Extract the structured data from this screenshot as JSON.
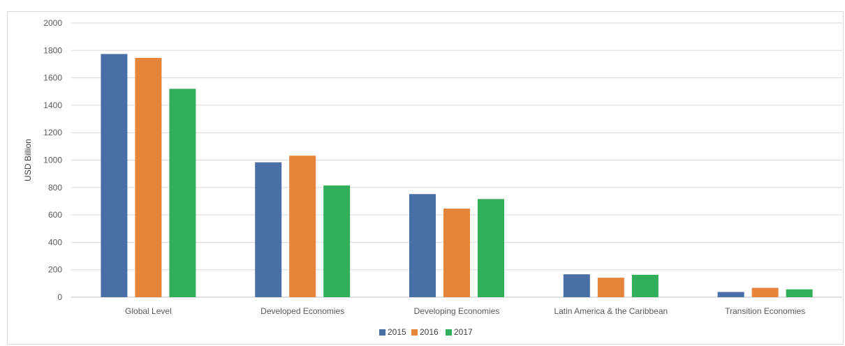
{
  "header": {
    "partial_title": ""
  },
  "chart_data": {
    "type": "bar",
    "title": "",
    "xlabel": "",
    "ylabel": "USD Billion",
    "ylim": [
      0,
      2000
    ],
    "yticks": [
      "0",
      "200",
      "400",
      "600",
      "800",
      "1000",
      "1200",
      "1400",
      "1600",
      "1800",
      "2000"
    ],
    "grid": true,
    "legend_position": "bottom",
    "categories": [
      "Global  Level",
      "Developed Economies",
      "Developing Economies",
      "Latin America & the Caribbean",
      "Transition Economies"
    ],
    "series": [
      {
        "name": "2015",
        "color": "#4a6ea8",
        "values": [
          1774,
          984,
          752,
          167,
          38
        ]
      },
      {
        "name": "2016",
        "color": "#e5843a",
        "values": [
          1746,
          1032,
          646,
          142,
          68
        ]
      },
      {
        "name": "2017",
        "color": "#31ae59",
        "values": [
          1520,
          815,
          716,
          163,
          57
        ]
      }
    ]
  }
}
